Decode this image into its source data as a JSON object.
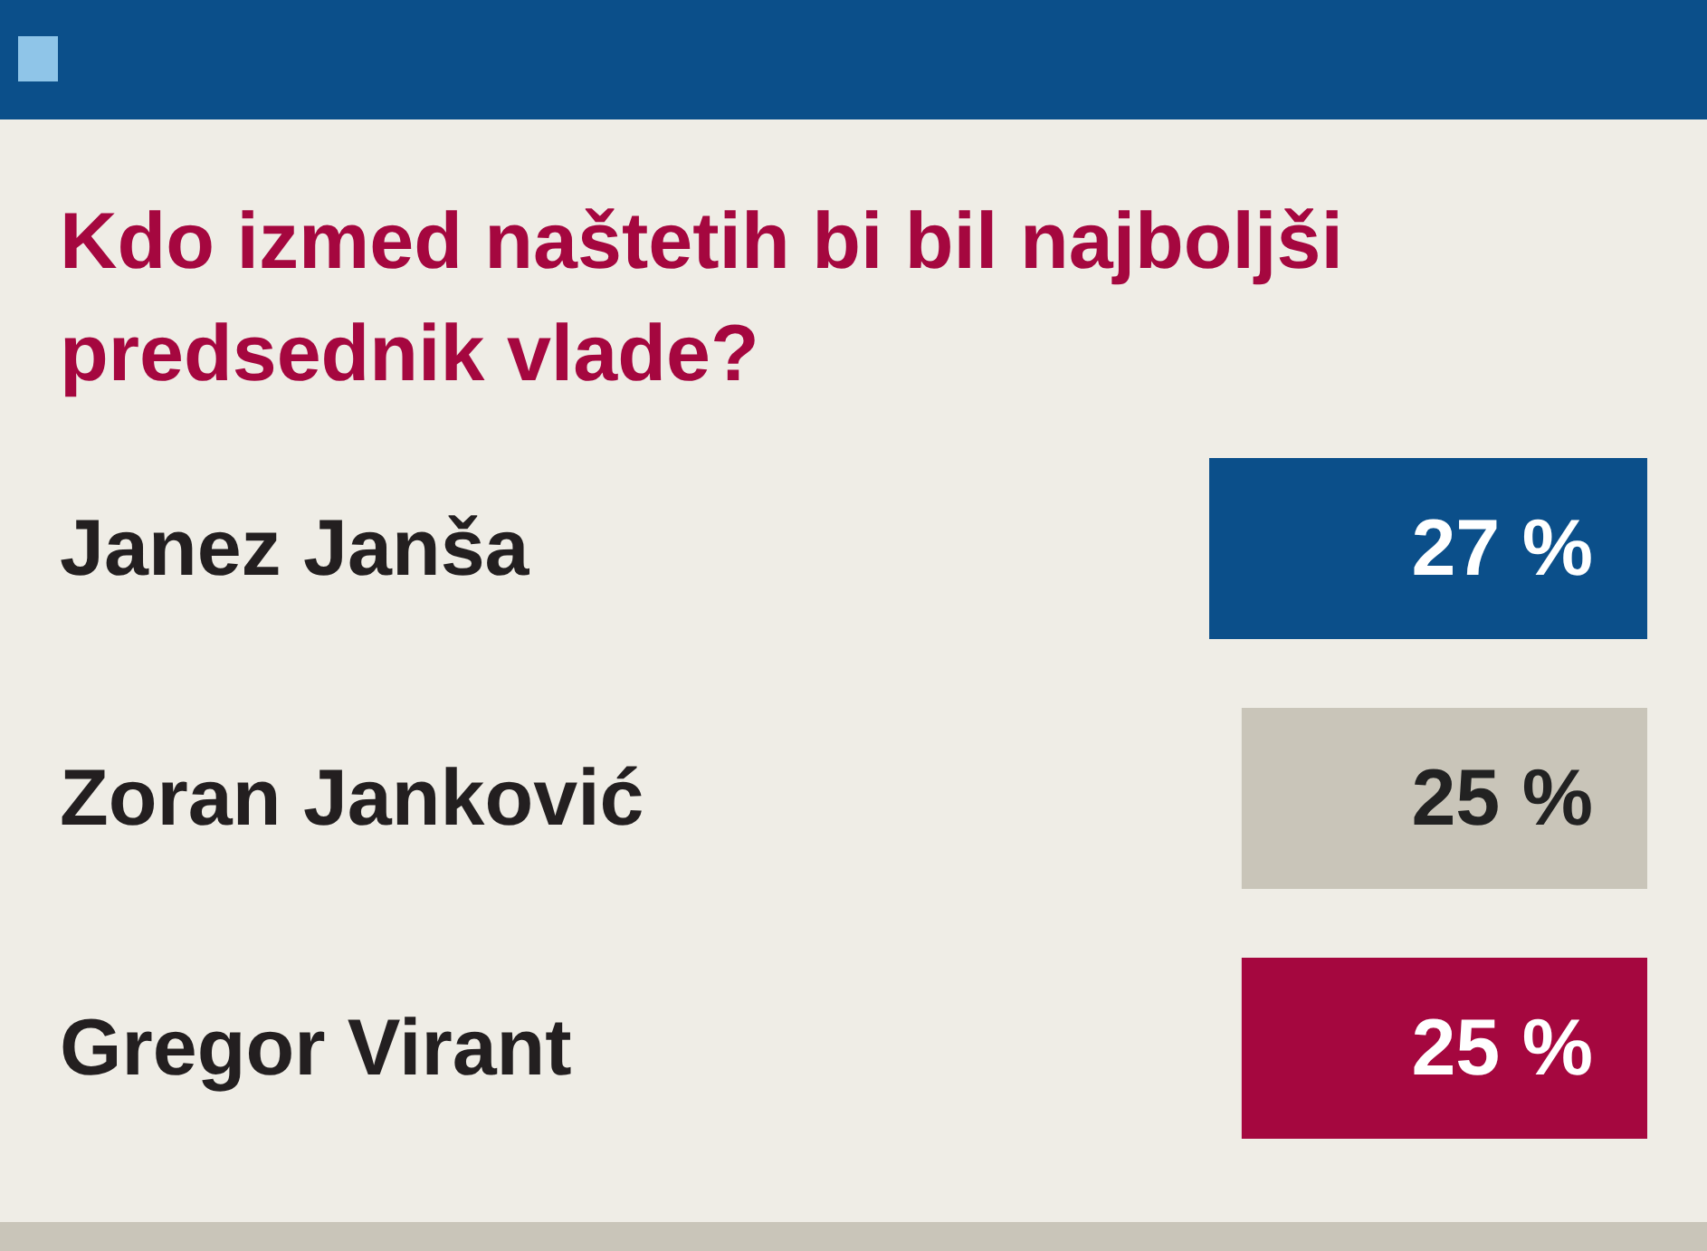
{
  "chart_data": {
    "type": "bar",
    "orientation": "horizontal",
    "title": "Kdo izmed naštetih bi bil najboljši predsednik vlade?",
    "categories": [
      "Janez Janša",
      "Zoran Janković",
      "Gregor Virant"
    ],
    "values": [
      27,
      25,
      25
    ],
    "colors": [
      "#0b4f8a",
      "#c9c5b9",
      "#a5073f"
    ],
    "value_labels": [
      "27 %",
      "25 %",
      "25 %"
    ]
  }
}
